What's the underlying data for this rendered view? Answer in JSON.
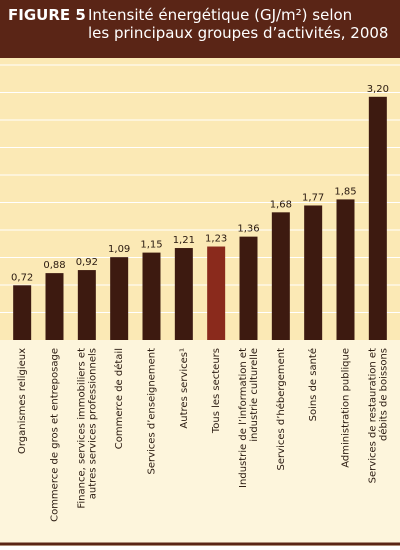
{
  "chart_data": {
    "type": "bar",
    "figure_label": "FIGURE 5",
    "title": "Intensité énergétique (GJ/m²) selon\nles principaux groupes d’activités, 2008",
    "categories": [
      "Organismes religieux",
      "Commerce de gros et entreposage",
      "Finance, services immobiliers et\nautres services professionnels",
      "Commerce de détail",
      "Services d’enseignement",
      "Autres services¹",
      "Tous les secteurs",
      "Industrie de l’information et\nindustrie culturelle",
      "Services d’hébergement",
      "Soins de santé",
      "Administration publique",
      "Services de restauration et\ndébits de boissons"
    ],
    "values": [
      0.72,
      0.88,
      0.92,
      1.09,
      1.15,
      1.21,
      1.23,
      1.36,
      1.68,
      1.77,
      1.85,
      3.2
    ],
    "value_labels": [
      "0,72",
      "0,88",
      "0,92",
      "1,09",
      "1,15",
      "1,21",
      "1,23",
      "1,36",
      "1,68",
      "1,77",
      "1,85",
      "3,20"
    ],
    "colors": [
      "#3d1a10",
      "#3d1a10",
      "#3d1a10",
      "#3d1a10",
      "#3d1a10",
      "#3d1a10",
      "#8a2a1c",
      "#3d1a10",
      "#3d1a10",
      "#3d1a10",
      "#3d1a10",
      "#3d1a10"
    ],
    "ylim": [
      0,
      3.5
    ]
  }
}
